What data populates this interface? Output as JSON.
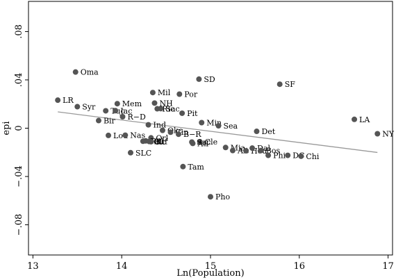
{
  "chart_data": {
    "type": "scatter",
    "xlabel": "Ln(Population)",
    "ylabel": "epi",
    "xlim": [
      12.95,
      17.05
    ],
    "ylim": [
      -0.105,
      0.105
    ],
    "x_ticks": [
      13,
      14,
      15,
      16,
      17
    ],
    "x_tick_labels": [
      "13",
      "14",
      "15",
      "16",
      "17"
    ],
    "y_ticks": [
      -0.08,
      -0.04,
      0,
      0.04,
      0.08
    ],
    "y_tick_labels": [
      "−.08",
      "−.04",
      "0",
      ".04",
      ".08"
    ],
    "grid": false,
    "legend": "none",
    "marker_color": "#555555",
    "fit_line_color": "#999999",
    "fit_line": [
      [
        13.28,
        0.0135
      ],
      [
        16.88,
        -0.0201
      ]
    ],
    "points": [
      {
        "label": "Oma",
        "x": 13.48,
        "y": 0.0465
      },
      {
        "label": "LR",
        "x": 13.28,
        "y": 0.0232
      },
      {
        "label": "Syr",
        "x": 13.5,
        "y": 0.0178
      },
      {
        "label": "Mem",
        "x": 13.95,
        "y": 0.0203
      },
      {
        "label": "Tuc",
        "x": 13.82,
        "y": 0.0144
      },
      {
        "label": "Jac",
        "x": 13.93,
        "y": 0.0145
      },
      {
        "label": "R−D",
        "x": 14.01,
        "y": 0.0095
      },
      {
        "label": "Bir",
        "x": 13.74,
        "y": 0.0063
      },
      {
        "label": "Lou",
        "x": 13.85,
        "y": -0.006
      },
      {
        "label": "Nas",
        "x": 14.04,
        "y": -0.0058
      },
      {
        "label": "SLC",
        "x": 14.1,
        "y": -0.0203
      },
      {
        "label": "Mil",
        "x": 14.35,
        "y": 0.0295
      },
      {
        "label": "NH",
        "x": 14.37,
        "y": 0.0208
      },
      {
        "label": "Ric",
        "x": 14.4,
        "y": 0.0161
      },
      {
        "label": "Sac",
        "x": 14.44,
        "y": 0.0162
      },
      {
        "label": "Por",
        "x": 14.65,
        "y": 0.0282
      },
      {
        "label": "SD",
        "x": 14.87,
        "y": 0.0406
      },
      {
        "label": "SF",
        "x": 15.78,
        "y": 0.0364
      },
      {
        "label": "Pit",
        "x": 14.68,
        "y": 0.0124
      },
      {
        "label": "Ind",
        "x": 14.3,
        "y": 0.0028
      },
      {
        "label": "Okc",
        "x": 14.46,
        "y": -0.0018
      },
      {
        "label": "Cin",
        "x": 14.55,
        "y": -0.0033
      },
      {
        "label": "B−R",
        "x": 14.64,
        "y": -0.005
      },
      {
        "label": "Orl",
        "x": 14.33,
        "y": -0.008
      },
      {
        "label": "Col",
        "x": 14.24,
        "y": -0.0108
      },
      {
        "label": "Ral",
        "x": 14.27,
        "y": -0.0105
      },
      {
        "label": "Buf",
        "x": 14.31,
        "y": -0.011
      },
      {
        "label": "Kc",
        "x": 14.33,
        "y": -0.0112
      },
      {
        "label": "Cle",
        "x": 14.88,
        "y": -0.0112
      },
      {
        "label": "Sac",
        "x": 14.79,
        "y": -0.0115
      },
      {
        "label": "Atl",
        "x": 14.8,
        "y": -0.0126
      },
      {
        "label": "Min",
        "x": 14.9,
        "y": 0.0046
      },
      {
        "label": "Sea",
        "x": 15.09,
        "y": 0.002
      },
      {
        "label": "Det",
        "x": 15.52,
        "y": -0.0026
      },
      {
        "label": "Mia",
        "x": 15.17,
        "y": -0.016
      },
      {
        "label": "Alt",
        "x": 15.25,
        "y": -0.0185
      },
      {
        "label": "Hou",
        "x": 15.4,
        "y": -0.0187
      },
      {
        "label": "Dal",
        "x": 15.47,
        "y": -0.0165
      },
      {
        "label": "Bos",
        "x": 15.57,
        "y": -0.0185
      },
      {
        "label": "Phi",
        "x": 15.65,
        "y": -0.0225
      },
      {
        "label": "DC",
        "x": 15.87,
        "y": -0.0225
      },
      {
        "label": "Chi",
        "x": 16.02,
        "y": -0.0232
      },
      {
        "label": "LA",
        "x": 16.62,
        "y": 0.0073
      },
      {
        "label": "NY",
        "x": 16.88,
        "y": -0.0046
      },
      {
        "label": "Tam",
        "x": 14.69,
        "y": -0.0318
      },
      {
        "label": "Pho",
        "x": 15.0,
        "y": -0.0568
      }
    ]
  }
}
